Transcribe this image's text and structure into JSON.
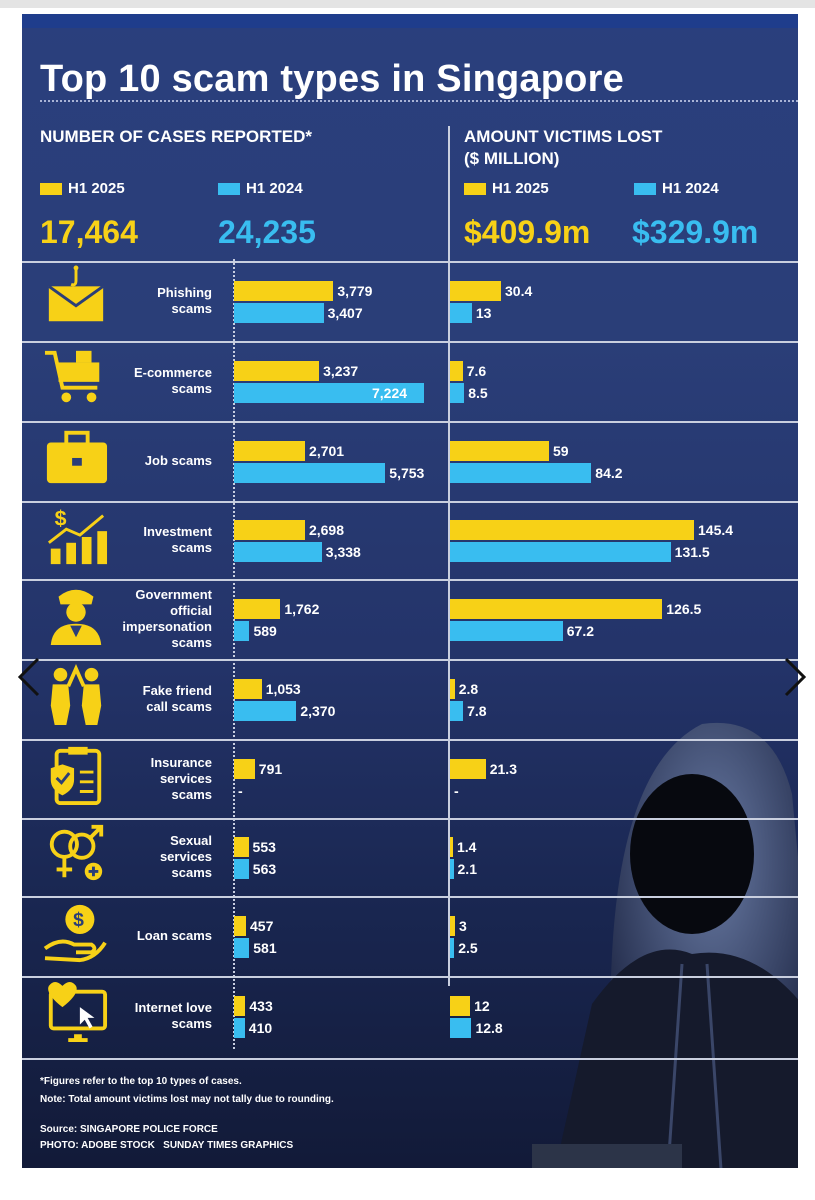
{
  "title": "Top 10 scam types in Singapore",
  "cases": {
    "heading": "NUMBER OF CASES REPORTED*",
    "legend_2025": "H1 2025",
    "legend_2024": "H1 2024",
    "total_2025": "17,464",
    "total_2024": "24,235"
  },
  "loss": {
    "heading_line1": "AMOUNT VICTIMS LOST",
    "heading_line2": "($ MILLION)",
    "legend_2025": "H1 2025",
    "legend_2024": "H1 2024",
    "total_2025": "$409.9m",
    "total_2024": "$329.9m"
  },
  "colors": {
    "h1_2025": "#f7d117",
    "h1_2024": "#39bdf0",
    "background": "#2a3e78"
  },
  "chart_data": [
    {
      "type": "bar",
      "title": "NUMBER OF CASES REPORTED*",
      "orientation": "horizontal",
      "categories": [
        "Phishing scams",
        "E-commerce scams",
        "Job scams",
        "Investment scams",
        "Government official impersonation scams",
        "Fake friend call scams",
        "Insurance services scams",
        "Sexual services scams",
        "Loan scams",
        "Internet love scams"
      ],
      "series": [
        {
          "name": "H1 2025",
          "values": [
            3779,
            3237,
            2701,
            2698,
            1762,
            1053,
            791,
            553,
            457,
            433
          ],
          "labels": [
            "3,779",
            "3,237",
            "2,701",
            "2,698",
            "1,762",
            "1,053",
            "791",
            "553",
            "457",
            "433"
          ]
        },
        {
          "name": "H1 2024",
          "values": [
            3407,
            7224,
            5753,
            3338,
            589,
            2370,
            null,
            563,
            581,
            410
          ],
          "labels": [
            "3,407",
            "7,224",
            "5,753",
            "3,338",
            "589",
            "2,370",
            "-",
            "563",
            "581",
            "410"
          ]
        }
      ]
    },
    {
      "type": "bar",
      "title": "AMOUNT VICTIMS LOST ($ MILLION)",
      "orientation": "horizontal",
      "categories": [
        "Phishing scams",
        "E-commerce scams",
        "Job scams",
        "Investment scams",
        "Government official impersonation scams",
        "Fake friend call scams",
        "Insurance services scams",
        "Sexual services scams",
        "Loan scams",
        "Internet love scams"
      ],
      "series": [
        {
          "name": "H1 2025",
          "values": [
            30.4,
            7.6,
            59,
            145.4,
            126.5,
            2.8,
            21.3,
            1.4,
            3,
            12
          ],
          "labels": [
            "30.4",
            "7.6",
            "59",
            "145.4",
            "126.5",
            "2.8",
            "21.3",
            "1.4",
            "3",
            "12"
          ]
        },
        {
          "name": "H1 2024",
          "values": [
            13,
            8.5,
            84.2,
            131.5,
            67.2,
            7.8,
            null,
            2.1,
            2.5,
            12.8
          ],
          "labels": [
            "13",
            "8.5",
            "84.2",
            "131.5",
            "67.2",
            "7.8",
            "-",
            "2.1",
            "2.5",
            "12.8"
          ]
        }
      ]
    }
  ],
  "rows": [
    {
      "label_lines": [
        "Phishing",
        "scams"
      ],
      "icon": "phishing-mail-icon"
    },
    {
      "label_lines": [
        "E-commerce",
        "scams"
      ],
      "icon": "shopping-cart-icon"
    },
    {
      "label_lines": [
        "Job scams"
      ],
      "icon": "briefcase-icon"
    },
    {
      "label_lines": [
        "Investment",
        "scams"
      ],
      "icon": "investment-chart-icon"
    },
    {
      "label_lines": [
        "Government",
        "official",
        "impersonation",
        "scams"
      ],
      "icon": "officer-icon"
    },
    {
      "label_lines": [
        "Fake friend",
        "call scams"
      ],
      "icon": "friends-icon"
    },
    {
      "label_lines": [
        "Insurance",
        "services",
        "scams"
      ],
      "icon": "insurance-clipboard-icon"
    },
    {
      "label_lines": [
        "Sexual",
        "services",
        "scams"
      ],
      "icon": "gender-symbols-icon"
    },
    {
      "label_lines": [
        "Loan scams"
      ],
      "icon": "loan-hand-icon"
    },
    {
      "label_lines": [
        "Internet love",
        "scams"
      ],
      "icon": "love-monitor-icon"
    }
  ],
  "notes": {
    "footnote": "*Figures refer to the top 10 types of cases.",
    "rounding": "Note: Total amount victims lost may not tally due to rounding.",
    "source": "Source: SINGAPORE POLICE FORCE",
    "credit": "PHOTO: ADOBE STOCK   SUNDAY TIMES GRAPHICS"
  }
}
